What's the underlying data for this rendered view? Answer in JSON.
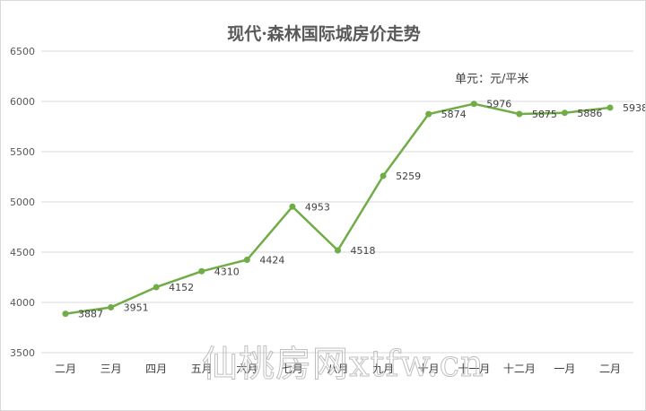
{
  "chart_data": {
    "type": "line",
    "title": "现代·森林国际城房价走势",
    "unit_label": "单元：元/平米",
    "categories": [
      "二月",
      "三月",
      "四月",
      "五月",
      "六月",
      "七月",
      "八月",
      "九月",
      "十月",
      "十一月",
      "十二月",
      "一月",
      "二月"
    ],
    "series": [
      {
        "values": [
          3887,
          3951,
          4152,
          4310,
          4424,
          4953,
          4518,
          5259,
          5874,
          5976,
          5875,
          5886,
          5938
        ]
      }
    ],
    "ylim": [
      3500,
      6500
    ],
    "yticks": [
      3500,
      4000,
      4500,
      5000,
      5500,
      6000,
      6500
    ],
    "grid": true,
    "data_labels": true,
    "line_color": "#70ad47",
    "marker_color": "#70ad47"
  },
  "watermark": "仙桃房网xtfw.cn"
}
